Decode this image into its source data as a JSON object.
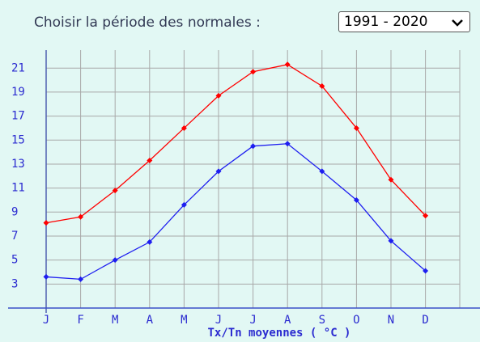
{
  "header": {
    "label": "Choisir la période des normales :",
    "selected": "1991 - 2020"
  },
  "chart_data": {
    "type": "line",
    "categories": [
      "J",
      "F",
      "M",
      "A",
      "M",
      "J",
      "J",
      "A",
      "S",
      "O",
      "N",
      "D"
    ],
    "series": [
      {
        "color": "#ff0000",
        "values": [
          8.1,
          8.6,
          10.8,
          13.3,
          16.0,
          18.7,
          20.7,
          21.3,
          19.5,
          16.0,
          11.7,
          8.7
        ]
      },
      {
        "color": "#1e1ef0",
        "values": [
          3.6,
          3.4,
          5.0,
          6.5,
          9.6,
          12.4,
          14.5,
          14.7,
          12.4,
          10.0,
          6.6,
          4.1
        ]
      }
    ],
    "xlabel": "Tx/Tn moyennes ( °C )",
    "ylim": [
      1,
      22.5
    ],
    "yticks": [
      3,
      5,
      7,
      9,
      11,
      13,
      15,
      17,
      19,
      21
    ],
    "grid": true
  }
}
